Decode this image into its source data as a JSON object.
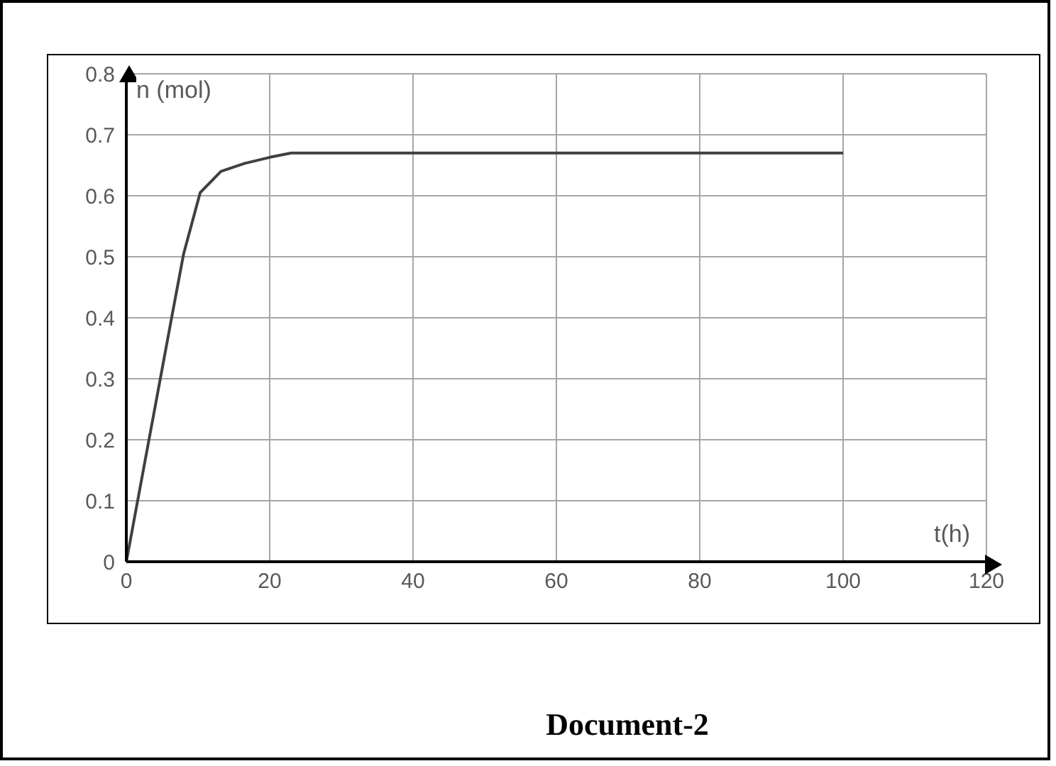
{
  "chart_data": {
    "type": "line",
    "xlabel": "t(h)",
    "ylabel": "n (mol)",
    "annotations": [
      "Document-2"
    ],
    "x": [
      0,
      6.4,
      8,
      10.3,
      13.2,
      16.5,
      20,
      23,
      100
    ],
    "series": [
      {
        "color": "#404040",
        "values": [
          0,
          0.405,
          0.505,
          0.605,
          0.64,
          0.653,
          0.663,
          0.67,
          0.67
        ]
      }
    ],
    "xlim": [
      0,
      120
    ],
    "xticks": [
      0,
      20,
      40,
      60,
      80,
      100,
      120
    ],
    "ylim": [
      0,
      0.8
    ],
    "yticks": [
      0,
      0.1,
      0.2,
      0.3,
      0.4,
      0.5,
      0.6,
      0.7,
      0.8
    ],
    "grid": true,
    "marker": "none",
    "line_style": "solid"
  }
}
